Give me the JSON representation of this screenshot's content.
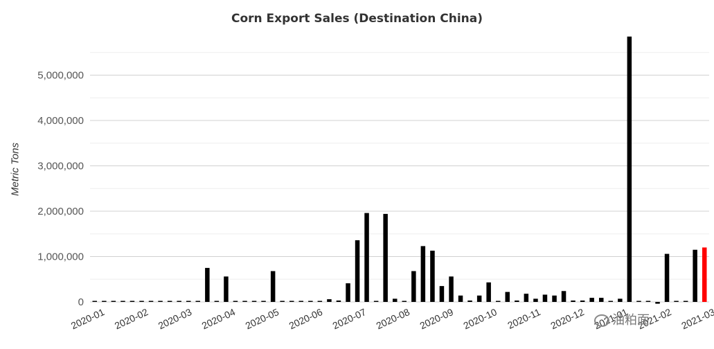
{
  "chart_data": {
    "type": "bar",
    "title": "Corn Export Sales (Destination China)",
    "xlabel": "",
    "ylabel": "Metric Tons",
    "ylim": [
      0,
      5900000
    ],
    "yticks": [
      0,
      1000000,
      2000000,
      3000000,
      4000000,
      5000000
    ],
    "ytick_labels": [
      "0",
      "1,000,000",
      "2,000,000",
      "3,000,000",
      "4,000,000",
      "5,000,000"
    ],
    "xtick_labels": [
      "2020-01",
      "2020-02",
      "2020-03",
      "2020-04",
      "2020-05",
      "2020-06",
      "2020-07",
      "2020-08",
      "2020-09",
      "2020-10",
      "2020-11",
      "2020-12",
      "2021-01",
      "2021-02",
      "2021-03"
    ],
    "grid": true,
    "legend": "none",
    "colors": {
      "bar": "#000000",
      "highlight": "#ff0000",
      "grid": "#d9d9d9"
    },
    "series": [
      {
        "values": [
          0,
          0,
          0,
          0,
          0,
          0,
          0,
          0,
          0,
          0,
          0,
          0,
          750000,
          0,
          560000,
          0,
          0,
          0,
          0,
          680000,
          0,
          0,
          0,
          0,
          0,
          60000,
          30000,
          410000,
          1360000,
          1960000,
          0,
          1940000,
          70000,
          20000,
          680000,
          1230000,
          1130000,
          350000,
          560000,
          140000,
          30000,
          140000,
          430000,
          20000,
          220000,
          30000,
          180000,
          70000,
          160000,
          140000,
          240000,
          30000,
          30000,
          90000,
          90000,
          20000,
          70000,
          5850000,
          20000,
          20000,
          -40000,
          1060000,
          20000,
          0,
          1150000,
          1200000
        ],
        "highlight_index": 65
      }
    ]
  },
  "watermark": {
    "text": "油粕面"
  }
}
